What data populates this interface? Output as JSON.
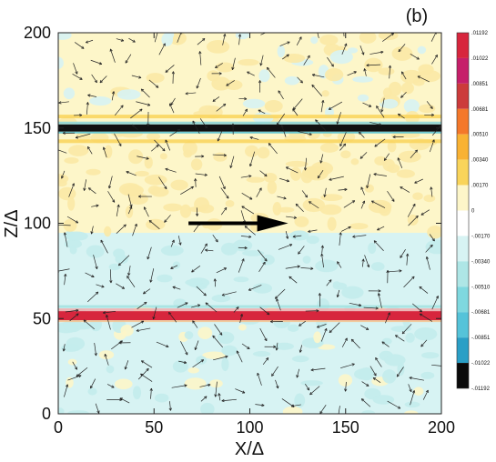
{
  "panel_label": "(b)",
  "colors": {
    "yellow": "#fdf6c9",
    "yellow_spot": "#fbe9a5",
    "cyan": "#d7f3f3",
    "cyan_spot": "#c3ecec",
    "red_band": "#d7263d",
    "black_band": "#111111",
    "arrow": "#222222"
  },
  "chart_data": {
    "type": "heatmap",
    "xlabel": "X/Δ",
    "ylabel": "Z/Δ",
    "xlim": [
      0,
      200
    ],
    "ylim": [
      0,
      200
    ],
    "xticks": [
      0,
      50,
      100,
      150,
      200
    ],
    "yticks": [
      0,
      50,
      100,
      150,
      200
    ],
    "regions": [
      {
        "from": 0,
        "to": 50,
        "level": "slightly negative (cyan) with yellow patches"
      },
      {
        "from": 53,
        "to": 95,
        "level": "slightly negative (cyan)"
      },
      {
        "from": 95,
        "to": 148,
        "level": "slightly positive (yellow)"
      },
      {
        "from": 152,
        "to": 200,
        "level": "slightly positive (yellow) with cyan patches"
      }
    ],
    "bands": [
      {
        "z": 51.5,
        "value": 0.01192,
        "color": "#d7263d"
      },
      {
        "z": 150,
        "value": -0.01192,
        "color": "#111111"
      }
    ],
    "flow_arrow": {
      "x_start": 68,
      "x_end": 120,
      "z": 100
    },
    "colorbar": {
      "labels": [
        ".01192",
        ".01022",
        ".00851",
        ".00681",
        ".00510",
        ".00340",
        ".00170",
        "0",
        "-.00170",
        "-.00340",
        "-.00510",
        "-.00681",
        "-.00851",
        "-.01022",
        "-.01192"
      ],
      "colors": [
        "#d7263d",
        "#c61f6a",
        "#cc3b3b",
        "#f4782a",
        "#f9b233",
        "#f9d45a",
        "#fdf6c9",
        "#ffffff",
        "#d7f3f3",
        "#aee6e6",
        "#7fd8df",
        "#55c3d9",
        "#2a9fc6",
        "#0a0a0a"
      ]
    }
  }
}
